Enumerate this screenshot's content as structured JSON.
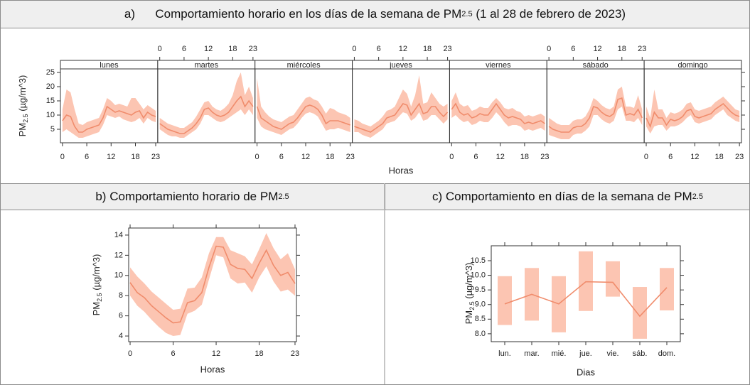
{
  "chart_data": [
    {
      "type": "line",
      "title_label": "a)",
      "title": "Comportamiento horario en los días de la semana de PM",
      "title_sub": "2.5",
      "title_end": " (1 al 28 de febrero de 2023)",
      "ylabel": "PM",
      "ylabel_sub": "2.5",
      "ylabel_end": " (µg/m^3)",
      "xlabel": "Horas",
      "x": [
        0,
        1,
        2,
        3,
        4,
        5,
        6,
        7,
        8,
        9,
        10,
        11,
        12,
        13,
        14,
        15,
        16,
        17,
        18,
        19,
        20,
        21,
        22,
        23
      ],
      "xlim": [
        -0.5,
        23.5
      ],
      "xticks": [
        0,
        6,
        12,
        18,
        23
      ],
      "ylim": [
        0.25,
        26.25
      ],
      "yticks": [
        5,
        10,
        15,
        20,
        25
      ],
      "color": "#f08c6c",
      "band_color": "#fcc5b2",
      "panels": [
        {
          "name": "lunes",
          "values": [
            8,
            10,
            9.5,
            6,
            4,
            4,
            5,
            5.5,
            6,
            6.5,
            9,
            13,
            12,
            11,
            11.5,
            11,
            10.5,
            10,
            11,
            11.5,
            9,
            11,
            10,
            9.5
          ],
          "lower": [
            4,
            5,
            4,
            3,
            2,
            2,
            2.5,
            3,
            3.5,
            4,
            6.5,
            10,
            9.5,
            9,
            9.5,
            8.5,
            8,
            7.5,
            8,
            9,
            7,
            9,
            8,
            7.5
          ],
          "upper": [
            12,
            19,
            18,
            12,
            7,
            6.5,
            7.5,
            8,
            8.5,
            9,
            12,
            16,
            15,
            13.5,
            14,
            13.5,
            13,
            16,
            16,
            14,
            12,
            13.5,
            12.5,
            11.5
          ]
        },
        {
          "name": "martes",
          "values": [
            7,
            6,
            5,
            4.5,
            4,
            3.5,
            3.5,
            4.5,
            5.5,
            7,
            9,
            12,
            12.5,
            11,
            10,
            9.5,
            10,
            11,
            13,
            15,
            16.5,
            13,
            15,
            13
          ],
          "lower": [
            5,
            4,
            3,
            2.5,
            2.5,
            2,
            2,
            3,
            4,
            5,
            7,
            10,
            10,
            9,
            8,
            7.5,
            8,
            9,
            10,
            11,
            12,
            10,
            12,
            10
          ],
          "upper": [
            9,
            8,
            7,
            6.5,
            6,
            5.5,
            5.5,
            6.5,
            7.5,
            9.5,
            12,
            14.5,
            15,
            13,
            12,
            11.5,
            12.5,
            14,
            17,
            22,
            25,
            17,
            20,
            16
          ]
        },
        {
          "name": "miércoles",
          "values": [
            13,
            9,
            8,
            7,
            6,
            5.5,
            5,
            6,
            7,
            7.5,
            9,
            11,
            13,
            13.5,
            13,
            12,
            10,
            7,
            8,
            8,
            8,
            7.5,
            7,
            6.5
          ],
          "lower": [
            9,
            6,
            5,
            4.5,
            4,
            3.5,
            3,
            4,
            5,
            5.5,
            7,
            9,
            10.5,
            11,
            10.5,
            9.5,
            7,
            4.5,
            5,
            5,
            5.5,
            5,
            4.5,
            4
          ],
          "upper": [
            23,
            13,
            11,
            9.5,
            8.5,
            8,
            7.5,
            8.5,
            9.5,
            10,
            12,
            14,
            16,
            16.5,
            15.5,
            15,
            13,
            10.5,
            12.5,
            12,
            11,
            10.5,
            10,
            9
          ]
        },
        {
          "name": "jueves",
          "values": [
            6,
            5.5,
            5,
            4.5,
            4,
            5,
            6,
            7,
            9,
            9.5,
            10,
            12,
            14,
            13.5,
            10,
            12,
            14,
            10.5,
            11,
            13,
            13,
            11,
            9.5,
            11
          ],
          "lower": [
            4,
            4,
            3,
            2.5,
            2,
            3,
            4,
            5,
            7,
            7.5,
            8,
            9.5,
            11,
            10.5,
            8,
            9,
            11,
            8,
            8.5,
            10,
            10,
            8.5,
            7,
            8.5
          ],
          "upper": [
            8.5,
            8,
            7,
            6.5,
            6,
            7,
            8,
            9.5,
            11.5,
            12,
            13,
            16,
            19,
            17.5,
            13,
            17,
            24,
            14,
            14.5,
            18,
            16,
            14,
            13,
            14
          ]
        },
        {
          "name": "viernes",
          "values": [
            12,
            14,
            11,
            10,
            10.5,
            9,
            9.5,
            10.5,
            10,
            10,
            12,
            14,
            12,
            10,
            9,
            9.5,
            9,
            8.5,
            7,
            7.5,
            7,
            7.5,
            8,
            7
          ],
          "lower": [
            9,
            10,
            8.5,
            7.5,
            8,
            6.5,
            7,
            8,
            7.5,
            7.5,
            9,
            11,
            9.5,
            7.5,
            6,
            6.5,
            6.5,
            6,
            4.5,
            5,
            4.5,
            5,
            5.5,
            4.5
          ],
          "upper": [
            15,
            18,
            14,
            13,
            13.5,
            11.5,
            12,
            13,
            12.5,
            12.5,
            14.5,
            16,
            14.5,
            12.5,
            12,
            12.5,
            11.5,
            11,
            9.5,
            10,
            9.5,
            10,
            10.5,
            9.5
          ]
        },
        {
          "name": "sábado",
          "values": [
            6,
            5,
            4.5,
            4,
            4,
            4,
            5.5,
            6,
            6,
            7,
            9,
            13,
            12.5,
            11,
            10,
            9.5,
            10.5,
            15.5,
            16,
            10,
            10.5,
            10,
            12,
            9
          ],
          "lower": [
            3,
            2.5,
            2,
            1.5,
            1.5,
            1.5,
            3,
            3.5,
            3.5,
            4.5,
            6,
            10,
            10,
            8.5,
            7.5,
            7,
            8,
            12,
            13,
            8,
            8,
            7.5,
            9,
            6.5
          ],
          "upper": [
            9,
            8,
            7,
            6.5,
            6.5,
            6.5,
            8,
            8.5,
            8.5,
            9.5,
            12,
            16,
            15,
            13.5,
            12.5,
            12,
            13,
            19,
            20,
            13,
            13,
            12.5,
            17,
            12
          ]
        },
        {
          "name": "domingo",
          "values": [
            9,
            6,
            11,
            9,
            9,
            6.5,
            8.5,
            8,
            8.5,
            9.5,
            11.5,
            12,
            9.5,
            9,
            9.5,
            10,
            10.5,
            12,
            13,
            14,
            12.5,
            11,
            10,
            9.5
          ],
          "lower": [
            6,
            3.5,
            6,
            6.5,
            6.5,
            4.5,
            6,
            6,
            6.5,
            7.5,
            9,
            10,
            7.5,
            7,
            7.5,
            8,
            8.5,
            10,
            11,
            12,
            10,
            9,
            8,
            7.5
          ],
          "upper": [
            13,
            9,
            19,
            12,
            12,
            9,
            11,
            10.5,
            11,
            12,
            14,
            14.5,
            12,
            11.5,
            12,
            12.5,
            13,
            14.5,
            15.5,
            16.5,
            15,
            13.5,
            12,
            11.5
          ]
        }
      ]
    },
    {
      "type": "line",
      "title_label": "b)",
      "title": "Comportamiento horario de PM",
      "title_sub": "2.5",
      "ylabel": "PM",
      "ylabel_sub": "2.5",
      "ylabel_end": " (µg/m^3)",
      "xlabel": "Horas",
      "x": [
        0,
        1,
        2,
        3,
        4,
        5,
        6,
        7,
        8,
        9,
        10,
        11,
        12,
        13,
        14,
        15,
        16,
        17,
        18,
        19,
        20,
        21,
        22,
        23
      ],
      "xlim": [
        -0.2,
        23.2
      ],
      "xticks": [
        0,
        6,
        12,
        18,
        23
      ],
      "ylim": [
        3.44,
        14.7
      ],
      "yticks": [
        4,
        6,
        8,
        10,
        12,
        14
      ],
      "color": "#f08c6c",
      "band_color": "#fcc5b2",
      "values": [
        9.3,
        8.3,
        7.8,
        7.0,
        6.4,
        5.8,
        5.3,
        5.4,
        7.3,
        7.5,
        8.3,
        10.8,
        12.9,
        12.8,
        11.1,
        10.7,
        10.6,
        9.7,
        11.2,
        12.5,
        11.0,
        10.0,
        10.3,
        9.2
      ],
      "lower": [
        8.0,
        7.0,
        6.4,
        5.6,
        4.9,
        4.3,
        4.0,
        4.1,
        6.2,
        6.5,
        7.1,
        9.6,
        12.0,
        11.8,
        9.7,
        9.2,
        9.3,
        8.3,
        9.8,
        10.9,
        9.4,
        8.4,
        8.6,
        8.0
      ],
      "upper": [
        10.8,
        9.9,
        9.2,
        8.4,
        7.8,
        7.2,
        6.6,
        6.7,
        8.7,
        8.8,
        9.8,
        12.2,
        13.8,
        13.8,
        12.5,
        12.2,
        11.9,
        11.1,
        12.6,
        14.2,
        12.7,
        11.6,
        12.2,
        10.6
      ]
    },
    {
      "type": "interval",
      "title_label": "c)",
      "title": "Comportamiento en días de la semana de PM",
      "title_sub": "2.5",
      "ylabel": "PM",
      "ylabel_sub": "2.5",
      "ylabel_end": " (µg/m^3)",
      "xlabel": "Dias",
      "categories": [
        "lun.",
        "mar.",
        "mié.",
        "jue.",
        "vie.",
        "sáb.",
        "dom."
      ],
      "ylim": [
        7.73,
        11.01
      ],
      "yticks": [
        {
          "value": 8,
          "label": "8.0"
        },
        8.5,
        {
          "value": 9,
          "label": "9.0"
        },
        9.5,
        {
          "value": 10,
          "label": "10.0"
        },
        10.5
      ],
      "color": "#f08c6c",
      "band_color": "#fcc5b2",
      "values": [
        9.02,
        9.35,
        9.02,
        9.78,
        9.76,
        8.6,
        9.58
      ],
      "lower": [
        8.3,
        8.45,
        8.05,
        8.78,
        9.27,
        7.83,
        8.8
      ],
      "upper": [
        9.97,
        10.25,
        9.97,
        10.82,
        10.48,
        9.6,
        10.25
      ]
    }
  ]
}
